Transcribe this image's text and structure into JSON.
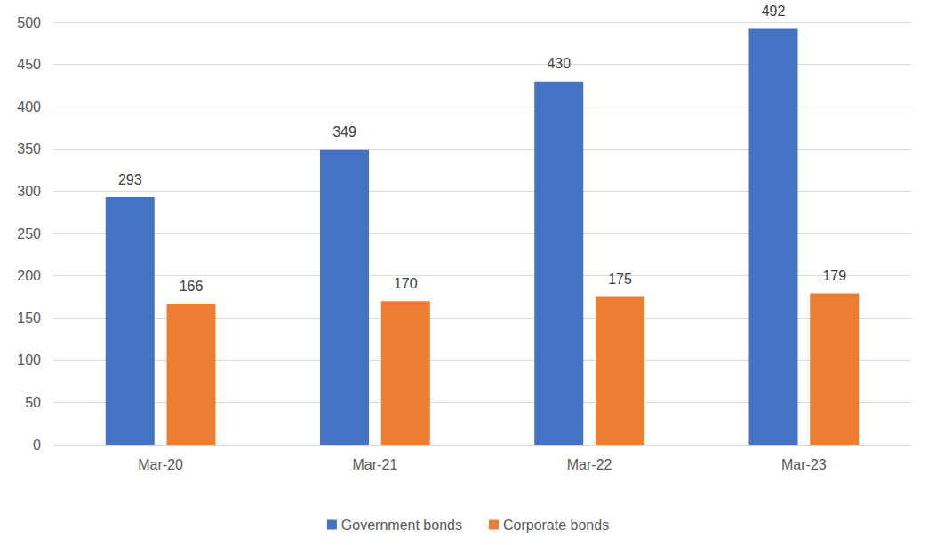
{
  "chart_data": {
    "type": "bar",
    "categories": [
      "Mar-20",
      "Mar-21",
      "Mar-22",
      "Mar-23"
    ],
    "series": [
      {
        "name": "Government bonds",
        "color": "#4472c4",
        "values": [
          293,
          349,
          430,
          492
        ]
      },
      {
        "name": "Corporate bonds",
        "color": "#ed7d31",
        "values": [
          166,
          170,
          175,
          179
        ]
      }
    ],
    "ylim": [
      0,
      500
    ],
    "yticks": [
      0,
      50,
      100,
      150,
      200,
      250,
      300,
      350,
      400,
      450,
      500
    ],
    "grid": true,
    "legend": "bottom",
    "data_labels": true
  }
}
